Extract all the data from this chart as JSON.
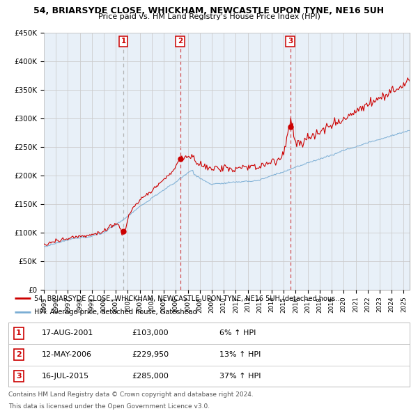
{
  "title1": "54, BRIARSYDE CLOSE, WHICKHAM, NEWCASTLE UPON TYNE, NE16 5UH",
  "title2": "Price paid vs. HM Land Registry's House Price Index (HPI)",
  "ylim": [
    0,
    450000
  ],
  "yticks": [
    0,
    50000,
    100000,
    150000,
    200000,
    250000,
    300000,
    350000,
    400000,
    450000
  ],
  "ytick_labels": [
    "£0",
    "£50K",
    "£100K",
    "£150K",
    "£200K",
    "£250K",
    "£300K",
    "£350K",
    "£400K",
    "£450K"
  ],
  "xlim_start": 1995,
  "xlim_end": 2025.5,
  "sales": [
    {
      "label": "1",
      "date_num": 2001.63,
      "price": 103000,
      "pct": "6%",
      "date_str": "17-AUG-2001",
      "price_str": "£103,000",
      "vline_color": "#999999",
      "vline_style": "--"
    },
    {
      "label": "2",
      "date_num": 2006.36,
      "price": 229950,
      "pct": "13%",
      "date_str": "12-MAY-2006",
      "price_str": "£229,950",
      "vline_color": "#cc0000",
      "vline_style": "--"
    },
    {
      "label": "3",
      "date_num": 2015.54,
      "price": 285000,
      "pct": "37%",
      "date_str": "16-JUL-2015",
      "price_str": "£285,000",
      "vline_color": "#cc0000",
      "vline_style": "--"
    }
  ],
  "red_line_color": "#cc0000",
  "blue_line_color": "#7aadd4",
  "background_color": "#ffffff",
  "chart_bg_color": "#e8f0f8",
  "grid_color": "#cccccc",
  "legend_label_red": "54, BRIARSYDE CLOSE, WHICKHAM, NEWCASTLE UPON TYNE, NE16 5UH (detached hous…",
  "legend_label_blue": "HPI: Average price, detached house, Gateshead",
  "footer1": "Contains HM Land Registry data © Crown copyright and database right 2024.",
  "footer2": "This data is licensed under the Open Government Licence v3.0."
}
